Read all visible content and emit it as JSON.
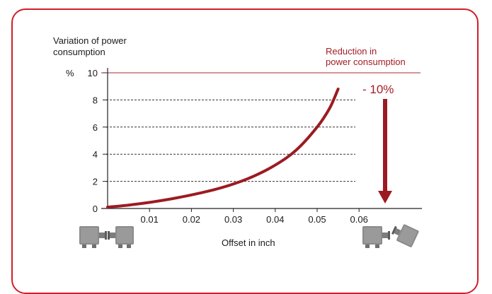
{
  "chart_data": {
    "type": "line",
    "ylabel": "Variation of power consumption",
    "yunit": "%",
    "xlabel": "Offset in inch",
    "xlim": [
      0,
      0.075
    ],
    "ylim": [
      0,
      10
    ],
    "x_ticks": [
      "0.01",
      "0.02",
      "0.03",
      "0.04",
      "0.05",
      "0.06"
    ],
    "y_ticks": [
      "0",
      "2",
      "4",
      "6",
      "8",
      "10"
    ],
    "grid": "dashed horizontal",
    "series": [
      {
        "x": [
          0.0,
          0.005,
          0.01,
          0.015,
          0.02,
          0.025,
          0.03,
          0.035,
          0.04,
          0.045,
          0.05,
          0.053,
          0.055
        ],
        "y": [
          0.1,
          0.25,
          0.45,
          0.7,
          1.0,
          1.35,
          1.8,
          2.4,
          3.2,
          4.3,
          6.0,
          7.4,
          8.8
        ]
      }
    ],
    "annotation": {
      "title": "Reduction in power consumption",
      "title_lines": [
        "Reduction in",
        "power consumption"
      ],
      "value": "- 10%"
    }
  },
  "colors": {
    "frame": "#d01e2a",
    "curve": "#9c1b21",
    "accent_text": "#a31d24"
  },
  "icons": {
    "left": "aligned-motor-pump-icon",
    "right": "misaligned-motor-pump-icon"
  }
}
